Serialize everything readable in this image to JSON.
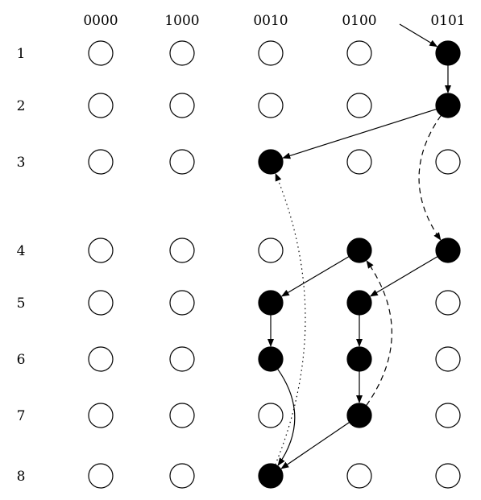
{
  "columns": [
    "0000",
    "1000",
    "0010",
    "0100",
    "0101"
  ],
  "rows": [
    "1",
    "2",
    "3",
    "4",
    "5",
    "6",
    "7",
    "8"
  ],
  "filled": [
    [
      0,
      4
    ],
    [
      1,
      4
    ],
    [
      2,
      2
    ],
    [
      3,
      3
    ],
    [
      3,
      4
    ],
    [
      4,
      2
    ],
    [
      4,
      3
    ],
    [
      5,
      2
    ],
    [
      5,
      3
    ],
    [
      6,
      3
    ],
    [
      7,
      2
    ]
  ],
  "edges": [
    {
      "from": [
        1,
        4
      ],
      "to": [
        0,
        4
      ],
      "style": "solid",
      "curve": "straight",
      "direction": "down"
    },
    {
      "from": [
        1,
        4
      ],
      "to": [
        2,
        2
      ],
      "style": "solid",
      "curve": "straight"
    },
    {
      "from": [
        1,
        4
      ],
      "to": [
        3,
        4
      ],
      "style": "dashed",
      "curve": "bend-left"
    },
    {
      "from": [
        3,
        3
      ],
      "to": [
        4,
        2
      ],
      "style": "solid",
      "curve": "straight"
    },
    {
      "from": [
        3,
        4
      ],
      "to": [
        4,
        3
      ],
      "style": "solid",
      "curve": "straight"
    },
    {
      "from": [
        4,
        2
      ],
      "to": [
        5,
        2
      ],
      "style": "solid",
      "curve": "straight"
    },
    {
      "from": [
        4,
        3
      ],
      "to": [
        5,
        3
      ],
      "style": "solid",
      "curve": "straight"
    },
    {
      "from": [
        5,
        3
      ],
      "to": [
        6,
        3
      ],
      "style": "solid",
      "curve": "straight"
    },
    {
      "from": [
        6,
        3
      ],
      "to": [
        7,
        2
      ],
      "style": "solid",
      "curve": "straight"
    },
    {
      "from": [
        5,
        2
      ],
      "to": [
        7,
        2
      ],
      "style": "solid",
      "curve": "bend-right"
    },
    {
      "from": [
        6,
        3
      ],
      "to": [
        3,
        3
      ],
      "style": "dashed",
      "curve": "bend-left"
    },
    {
      "from": [
        7,
        2
      ],
      "to": [
        2,
        2
      ],
      "style": "dotted",
      "curve": "bend-left"
    }
  ],
  "entry": {
    "to": [
      0,
      4
    ],
    "style": "solid"
  },
  "colors": {
    "stroke": "#000000",
    "filled": "#000000",
    "empty": "#ffffff"
  }
}
